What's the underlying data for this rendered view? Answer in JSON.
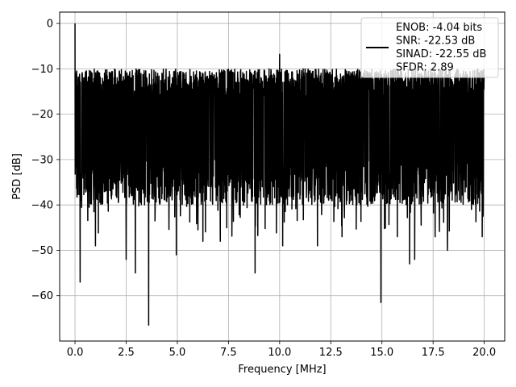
{
  "chart_data": {
    "type": "line",
    "title": "",
    "xlabel": "Frequency [MHz]",
    "ylabel": "PSD [dB]",
    "xlim": [
      -0.75,
      21.0
    ],
    "ylim": [
      -70,
      2.5
    ],
    "grid": true,
    "x_ticks": [
      0.0,
      2.5,
      5.0,
      7.5,
      10.0,
      12.5,
      15.0,
      17.5,
      20.0
    ],
    "x_tick_labels": [
      "0.0",
      "2.5",
      "5.0",
      "7.5",
      "10.0",
      "12.5",
      "15.0",
      "17.5",
      "20.0"
    ],
    "y_ticks": [
      0,
      -10,
      -20,
      -30,
      -40,
      -50,
      -60
    ],
    "y_tick_labels": [
      "0",
      "−10",
      "−20",
      "−30",
      "−40",
      "−50",
      "−60"
    ],
    "legend_position": "upper-right",
    "legend_lines": [
      "ENOB: -4.04 bits",
      "SNR: -22.53 dB",
      "SINAD: -22.55 dB",
      "SFDR: 2.89"
    ],
    "series": [
      {
        "color": "#000000",
        "description": "dense noise-like PSD spanning 0-20 MHz; band mostly between -13 and -37 dB",
        "x_start": 0.0,
        "x_end": 20.0,
        "band_upper": -14,
        "band_lower": -36,
        "peaks": [
          {
            "x": 0.0,
            "y": 0.0
          },
          {
            "x": 0.05,
            "y": -11.5
          },
          {
            "x": 10.0,
            "y": -6.8
          },
          {
            "x": 4.3,
            "y": -11.5
          },
          {
            "x": 6.6,
            "y": -11.8
          },
          {
            "x": 13.8,
            "y": -11.5
          },
          {
            "x": 17.1,
            "y": -11.8
          }
        ],
        "dips": [
          {
            "x": 0.25,
            "y": -57
          },
          {
            "x": 2.5,
            "y": -52
          },
          {
            "x": 2.95,
            "y": -55
          },
          {
            "x": 3.6,
            "y": -66.5
          },
          {
            "x": 4.95,
            "y": -51
          },
          {
            "x": 8.8,
            "y": -55
          },
          {
            "x": 14.95,
            "y": -61.5
          },
          {
            "x": 16.35,
            "y": -53
          },
          {
            "x": 16.6,
            "y": -52
          },
          {
            "x": 18.2,
            "y": -50
          },
          {
            "x": 1.0,
            "y": -49
          },
          {
            "x": 6.25,
            "y": -48
          },
          {
            "x": 7.1,
            "y": -48
          },
          {
            "x": 10.15,
            "y": -49
          },
          {
            "x": 11.85,
            "y": -49
          },
          {
            "x": 13.05,
            "y": -47
          },
          {
            "x": 15.75,
            "y": -47
          },
          {
            "x": 17.6,
            "y": -47
          },
          {
            "x": 19.9,
            "y": -47
          }
        ]
      }
    ]
  }
}
